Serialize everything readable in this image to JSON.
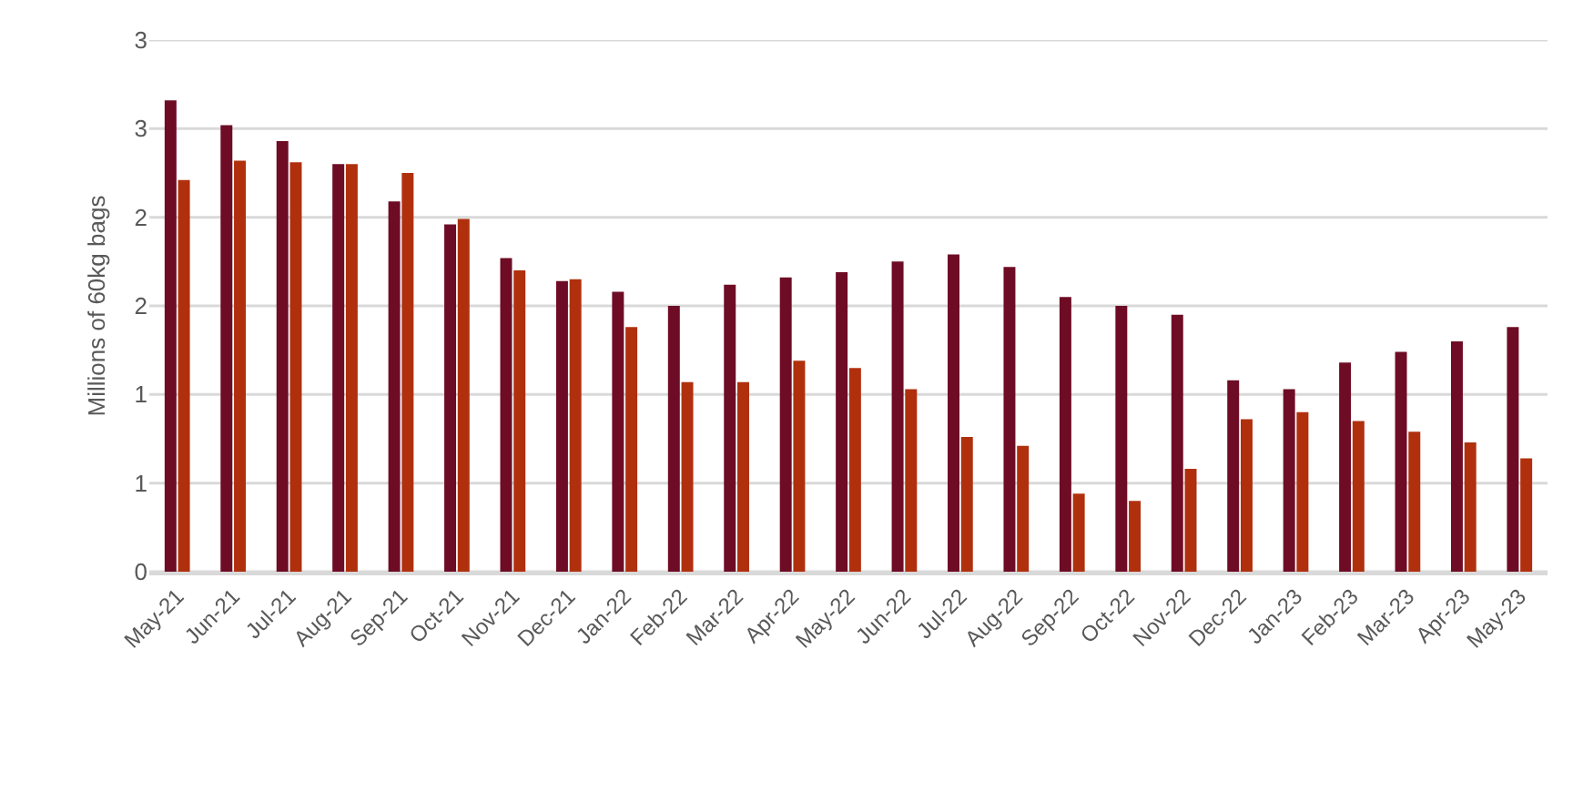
{
  "chart_data": {
    "type": "bar",
    "ylabel": "Millions of 60kg bags",
    "categories": [
      "May-21",
      "Jun-21",
      "Jul-21",
      "Aug-21",
      "Sep-21",
      "Oct-21",
      "Nov-21",
      "Dec-21",
      "Jan-22",
      "Feb-22",
      "Mar-22",
      "Apr-22",
      "May-22",
      "Jun-22",
      "Jul-22",
      "Aug-22",
      "Sep-22",
      "Oct-22",
      "Nov-22",
      "Dec-22",
      "Jan-23",
      "Feb-23",
      "Mar-23",
      "Apr-23",
      "May-23"
    ],
    "series": [
      {
        "color": "#6e0c25",
        "values": [
          2.66,
          2.52,
          2.43,
          2.3,
          2.09,
          1.96,
          1.77,
          1.64,
          1.58,
          1.5,
          1.62,
          1.66,
          1.69,
          1.75,
          1.79,
          1.72,
          1.55,
          1.5,
          1.45,
          1.08,
          1.03,
          1.18,
          1.24,
          1.3,
          1.38
        ]
      },
      {
        "color": "#b0300e",
        "values": [
          2.21,
          2.32,
          2.31,
          2.3,
          2.25,
          1.99,
          1.7,
          1.65,
          1.38,
          1.07,
          1.07,
          1.19,
          1.15,
          1.03,
          0.76,
          0.71,
          0.44,
          0.4,
          0.58,
          0.86,
          0.9,
          0.85,
          0.79,
          0.73,
          0.64
        ]
      }
    ],
    "ylim": [
      0,
      3
    ],
    "yticks": [
      0,
      {
        "value": 0.5,
        "label": "1"
      },
      1,
      {
        "value": 1.5,
        "label": "2"
      },
      2,
      {
        "value": 2.5,
        "label": "3"
      },
      3
    ],
    "grid": "y"
  }
}
